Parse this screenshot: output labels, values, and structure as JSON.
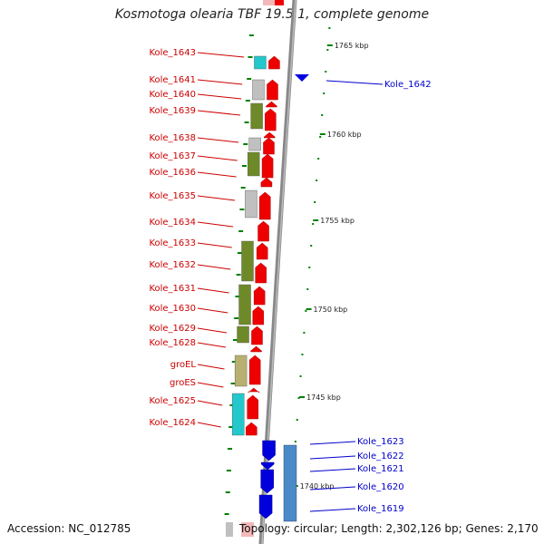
{
  "title": "Kosmotoga olearia TBF 19.5.1, complete genome",
  "accession": "Accession: NC_012785",
  "topology": "Topology: circular; Length: 2,302,126 bp; Genes: 2,170",
  "colors": {
    "forward_gene": "#ee0000",
    "reverse_gene": "#0000dd",
    "forward_label": "#cc0000",
    "reverse_label": "#0000cc",
    "cog_cyan": "#22c8cc",
    "cog_gray": "#c0c0c0",
    "cog_olive": "#6e8a28",
    "cog_khaki": "#b8b070",
    "cog_steelblue": "#4a8ac8",
    "backbone": "#888888",
    "tick": "#008000"
  },
  "scale_labels": [
    "1765 kbp",
    "1760 kbp",
    "1755 kbp",
    "1750 kbp",
    "1745 kbp",
    "1740 kbp"
  ],
  "forward_genes": [
    {
      "name": "Kole_1643"
    },
    {
      "name": "Kole_1641"
    },
    {
      "name": "Kole_1640"
    },
    {
      "name": "Kole_1639"
    },
    {
      "name": "Kole_1638"
    },
    {
      "name": "Kole_1637"
    },
    {
      "name": "Kole_1636"
    },
    {
      "name": "Kole_1635"
    },
    {
      "name": "Kole_1634"
    },
    {
      "name": "Kole_1633"
    },
    {
      "name": "Kole_1632"
    },
    {
      "name": "Kole_1631"
    },
    {
      "name": "Kole_1630"
    },
    {
      "name": "Kole_1629"
    },
    {
      "name": "Kole_1628"
    },
    {
      "name": "groEL"
    },
    {
      "name": "groES"
    },
    {
      "name": "Kole_1625"
    },
    {
      "name": "Kole_1624"
    }
  ],
  "reverse_genes": [
    {
      "name": "Kole_1642"
    },
    {
      "name": "Kole_1623"
    },
    {
      "name": "Kole_1622"
    },
    {
      "name": "Kole_1621"
    },
    {
      "name": "Kole_1620"
    },
    {
      "name": "Kole_1619"
    }
  ]
}
